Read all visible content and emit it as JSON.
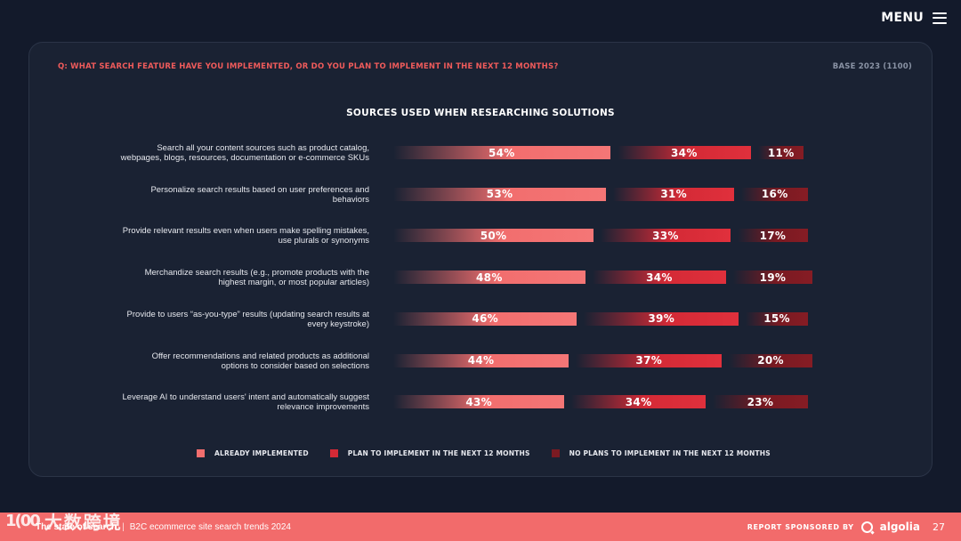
{
  "header": {
    "menu_label": "MENU"
  },
  "card": {
    "question": "Q: WHAT SEARCH FEATURE HAVE YOU IMPLEMENTED, OR DO YOU PLAN TO IMPLEMENT IN THE NEXT 12 MONTHS?",
    "base": "BASE 2023 (1100)"
  },
  "chart_data": {
    "type": "bar",
    "orientation": "horizontal",
    "stacked": true,
    "title": "SOURCES USED WHEN RESEARCHING SOLUTIONS",
    "categories": [
      [
        "Search all your content sources such as product catalog,",
        "webpages, blogs, resources, documentation or e-commerce SKUs"
      ],
      [
        "Personalize search results based on user preferences and",
        "behaviors"
      ],
      [
        "Provide relevant results even when users make spelling mistakes,",
        "use plurals or synonyms"
      ],
      [
        "Merchandize search results (e.g., promote products with the",
        "highest margin, or most popular articles)"
      ],
      [
        "Provide to users “as-you-type” results (updating search results at",
        "every keystroke)"
      ],
      [
        "Offer recommendations and related products as additional",
        "options to consider based on selections"
      ],
      [
        "Leverage AI to understand users' intent and automatically suggest",
        "relevance improvements"
      ]
    ],
    "series": [
      {
        "name": "ALREADY IMPLEMENTED",
        "values": [
          54,
          53,
          50,
          48,
          46,
          44,
          43
        ],
        "color": "#f26e6e"
      },
      {
        "name": "PLAN TO IMPLEMENT IN THE NEXT 12 MONTHS",
        "values": [
          34,
          31,
          33,
          34,
          39,
          37,
          34
        ],
        "color": "#d42a36"
      },
      {
        "name": "NO PLANS TO IMPLEMENT IN THE NEXT 12 MONTHS",
        "values": [
          11,
          16,
          17,
          19,
          15,
          20,
          23
        ],
        "color": "#7a1a22"
      }
    ],
    "value_suffix": "%",
    "xlim": [
      0,
      100
    ],
    "legend_position": "bottom"
  },
  "footer": {
    "brand": "The state of search",
    "separator": "|",
    "subtitle": "B2C ecommerce site search trends 2024",
    "sponsor_label": "REPORT SPONSORED BY",
    "sponsor_name": "algolia",
    "page_number": "27"
  },
  "watermark": {
    "logo": "1(00",
    "text": "大数跨境"
  },
  "icons": {
    "menu": "hamburger-icon",
    "sponsor": "algolia-icon"
  }
}
